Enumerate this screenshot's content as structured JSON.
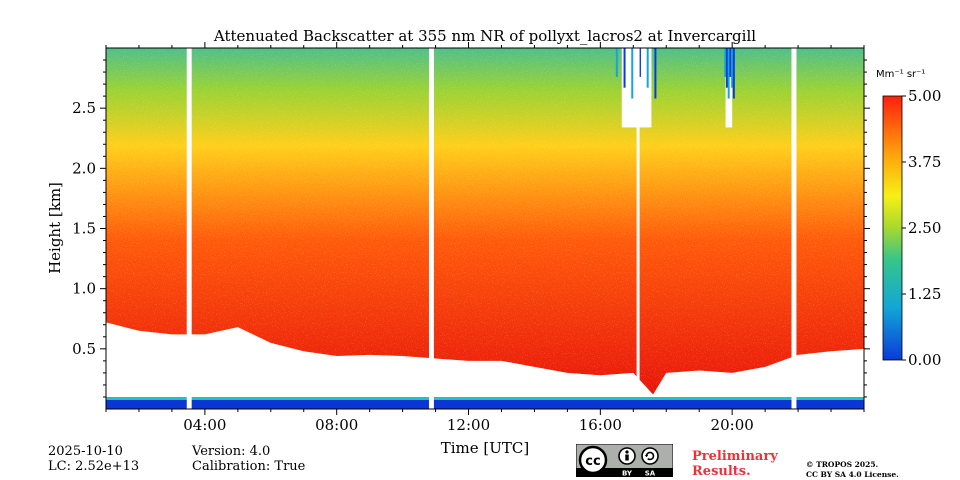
{
  "chart_data": {
    "type": "heatmap",
    "title": "Attenuated Backscatter at 355 nm NR of pollyxt_lacros2 at Invercargill",
    "xlabel": "Time [UTC]",
    "ylabel": "Height [km]",
    "x_ticks": [
      "04:00",
      "08:00",
      "12:00",
      "16:00",
      "20:00"
    ],
    "x_tick_hours": [
      4,
      8,
      12,
      16,
      20
    ],
    "xlim_hours": [
      1.0,
      24.0
    ],
    "y_ticks": [
      "0.5",
      "1.0",
      "1.5",
      "2.0",
      "2.5"
    ],
    "y_tick_values": [
      0.5,
      1.0,
      1.5,
      2.0,
      2.5
    ],
    "ylim_km": [
      0.0,
      3.0
    ],
    "colorbar": {
      "label": "Mm⁻¹ sr⁻¹",
      "ticks": [
        "0.00",
        "1.25",
        "2.50",
        "3.75",
        "5.00"
      ],
      "tick_values": [
        0.0,
        1.25,
        2.5,
        3.75,
        5.0
      ],
      "range": [
        0.0,
        5.0
      ],
      "colormap": "jet-like (blue-cyan-green-yellow-orange-red)"
    },
    "data_gaps_hours": [
      [
        3.45,
        3.6
      ],
      [
        10.8,
        10.95
      ],
      [
        21.8,
        21.95
      ]
    ],
    "cloud_base_km": {
      "description": "approximate lower edge of valid signal (red region) over time",
      "hours": [
        1,
        2,
        3,
        4,
        5,
        6,
        7,
        8,
        9,
        10,
        11,
        12,
        13,
        14,
        15,
        16,
        17,
        17.6,
        18,
        19,
        20,
        21,
        22,
        23,
        24
      ],
      "height_km": [
        0.72,
        0.65,
        0.62,
        0.62,
        0.68,
        0.55,
        0.48,
        0.44,
        0.45,
        0.44,
        0.42,
        0.4,
        0.4,
        0.35,
        0.3,
        0.28,
        0.3,
        0.12,
        0.3,
        0.32,
        0.3,
        0.35,
        0.45,
        0.48,
        0.5
      ]
    },
    "cloud_columns_hours": [
      [
        16.2,
        18.0
      ],
      [
        19.7,
        20.1
      ]
    ]
  },
  "footer": {
    "date": "2025-10-10",
    "lc": "LC: 2.52e+13",
    "version": "Version: 4.0",
    "calibration": "Calibration: True",
    "preliminary_line1": "Preliminary",
    "preliminary_line2": "Results.",
    "copyright_line1": "© TROPOS 2025.",
    "copyright_line2": "CC BY SA 4.0 License.",
    "license_badge": {
      "cc": "cc",
      "by": "BY",
      "sa": "SA"
    }
  },
  "colors": {
    "background": "#ffffff",
    "prelim_text": "#e8333b",
    "badge_bg": "#abb1aa",
    "badge_dark": "#000000"
  }
}
